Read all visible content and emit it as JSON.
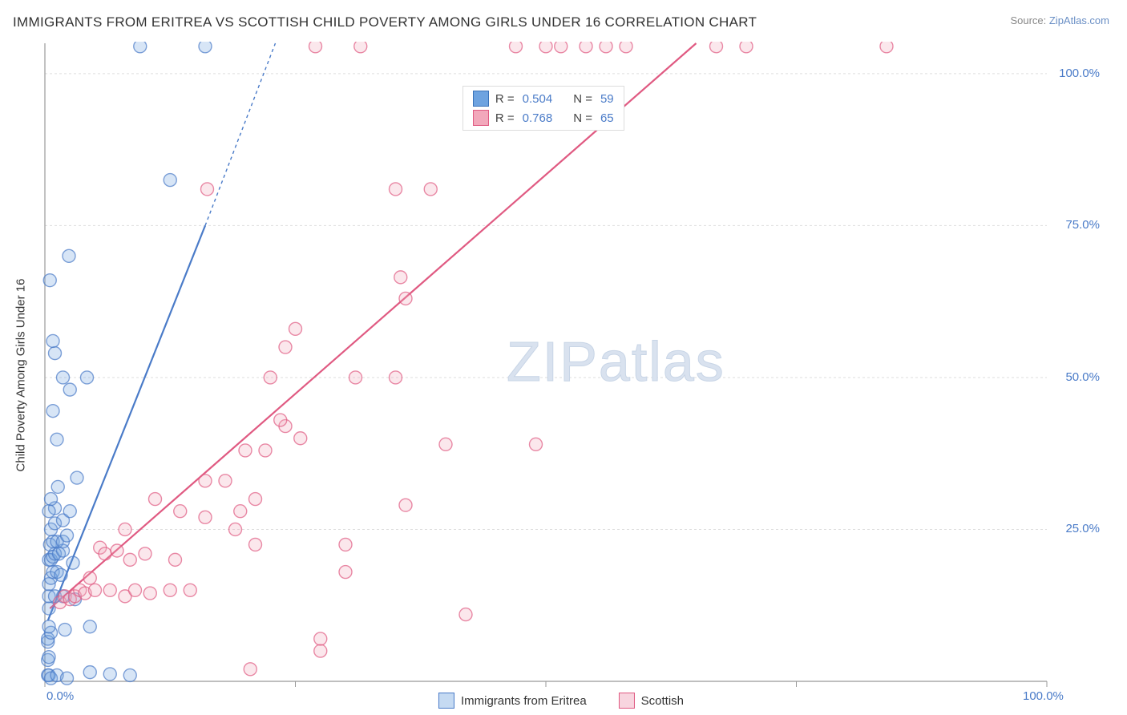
{
  "title": "IMMIGRANTS FROM ERITREA VS SCOTTISH CHILD POVERTY AMONG GIRLS UNDER 16 CORRELATION CHART",
  "source_prefix": "Source: ",
  "source_link_text": "ZipAtlas.com",
  "ylabel": "Child Poverty Among Girls Under 16",
  "watermark_zip": "ZIP",
  "watermark_atlas": "atlas",
  "legend_top": {
    "rows": [
      {
        "r_label": "R =",
        "r_val": "0.504",
        "n_label": "N =",
        "n_val": "59",
        "color": "#6ea3e0",
        "border": "#3a72b8"
      },
      {
        "r_label": "R =",
        "r_val": "0.768",
        "n_label": "N =",
        "n_val": "65",
        "color": "#f2a8bb",
        "border": "#e05a82"
      }
    ]
  },
  "legend_bottom": {
    "items": [
      {
        "label": "Immigrants from Eritrea",
        "fill": "#c5daf2",
        "border": "#4a7bc8"
      },
      {
        "label": "Scottish",
        "fill": "#f8d5df",
        "border": "#e05a82"
      }
    ]
  },
  "chart": {
    "type": "scatter",
    "xlim": [
      0,
      100
    ],
    "ylim": [
      0,
      105
    ],
    "xtick_labels": [
      {
        "v": 0,
        "label": "0.0%"
      },
      {
        "v": 100,
        "label": "100.0%"
      }
    ],
    "ytick_labels": [
      {
        "v": 25,
        "label": "25.0%"
      },
      {
        "v": 50,
        "label": "50.0%"
      },
      {
        "v": 75,
        "label": "75.0%"
      },
      {
        "v": 100,
        "label": "100.0%"
      }
    ],
    "x_minor_ticks": [
      25,
      50,
      75
    ],
    "y_gridlines": [
      25,
      50,
      75,
      100
    ],
    "y_minor_grid": [
      12.5,
      37.5,
      62.5,
      87.5
    ],
    "background_color": "#ffffff",
    "grid_color": "#dddddd",
    "axis_color": "#999999",
    "marker_radius": 8,
    "marker_stroke_width": 1.4,
    "marker_fill_opacity": 0.28,
    "series": [
      {
        "name": "Immigrants from Eritrea",
        "color": "#4a7bc8",
        "fill": "#6ea3e0",
        "trend": {
          "x1": 0.3,
          "y1": 10,
          "x2": 16,
          "y2": 75,
          "dash_after_x": 16,
          "dash_x2": 23,
          "dash_y2": 105
        },
        "points": [
          [
            0.3,
            1
          ],
          [
            0.4,
            1
          ],
          [
            0.6,
            0.5
          ],
          [
            1.2,
            1
          ],
          [
            2.2,
            0.5
          ],
          [
            4.5,
            1.5
          ],
          [
            6.5,
            1.2
          ],
          [
            8.5,
            1
          ],
          [
            0.3,
            3.5
          ],
          [
            0.4,
            4
          ],
          [
            0.3,
            6.5
          ],
          [
            0.3,
            7
          ],
          [
            0.6,
            8
          ],
          [
            0.4,
            9
          ],
          [
            2,
            8.5
          ],
          [
            4.5,
            9
          ],
          [
            0.4,
            12
          ],
          [
            0.4,
            14
          ],
          [
            1,
            14
          ],
          [
            1.8,
            14
          ],
          [
            3,
            13.5
          ],
          [
            0.4,
            16
          ],
          [
            0.6,
            17
          ],
          [
            0.8,
            18
          ],
          [
            1.2,
            18
          ],
          [
            1.6,
            17.5
          ],
          [
            2.8,
            19.5
          ],
          [
            0.4,
            20
          ],
          [
            0.6,
            20
          ],
          [
            0.8,
            20.5
          ],
          [
            1,
            21
          ],
          [
            1.4,
            21
          ],
          [
            1.8,
            21.5
          ],
          [
            0.5,
            22.5
          ],
          [
            0.8,
            23
          ],
          [
            1.2,
            23
          ],
          [
            1.8,
            23
          ],
          [
            2.2,
            24
          ],
          [
            0.6,
            25
          ],
          [
            1.0,
            26
          ],
          [
            1.8,
            26.5
          ],
          [
            1.0,
            28.5
          ],
          [
            0.4,
            28
          ],
          [
            2.5,
            28
          ],
          [
            0.6,
            30
          ],
          [
            1.3,
            32
          ],
          [
            3.2,
            33.5
          ],
          [
            1.2,
            39.8
          ],
          [
            0.8,
            44.5
          ],
          [
            2.5,
            48
          ],
          [
            1.8,
            50
          ],
          [
            4.2,
            50
          ],
          [
            1.0,
            54
          ],
          [
            0.8,
            56
          ],
          [
            2.4,
            70
          ],
          [
            0.5,
            66
          ],
          [
            12.5,
            82.5
          ],
          [
            16,
            104.5
          ],
          [
            9.5,
            104.5
          ]
        ]
      },
      {
        "name": "Scottish",
        "color": "#e05a82",
        "fill": "#f2a8bb",
        "trend": {
          "x1": 0.5,
          "y1": 12,
          "x2": 65,
          "y2": 105
        },
        "points": [
          [
            1.5,
            13
          ],
          [
            2,
            14
          ],
          [
            2.5,
            13.5
          ],
          [
            3,
            14
          ],
          [
            3.5,
            15
          ],
          [
            4,
            14.5
          ],
          [
            4.5,
            17
          ],
          [
            5,
            15
          ],
          [
            5.5,
            22
          ],
          [
            6,
            21
          ],
          [
            6.5,
            15
          ],
          [
            7.2,
            21.5
          ],
          [
            8,
            14
          ],
          [
            8.5,
            20
          ],
          [
            9,
            15
          ],
          [
            10,
            21
          ],
          [
            10.5,
            14.5
          ],
          [
            12.5,
            15
          ],
          [
            13,
            20
          ],
          [
            14.5,
            15
          ],
          [
            8,
            25
          ],
          [
            11,
            30
          ],
          [
            13.5,
            28
          ],
          [
            16,
            27
          ],
          [
            19,
            25
          ],
          [
            19.5,
            28
          ],
          [
            16,
            33
          ],
          [
            21,
            30
          ],
          [
            18,
            33
          ],
          [
            21,
            22.5
          ],
          [
            20,
            38
          ],
          [
            22,
            38
          ],
          [
            24,
            42
          ],
          [
            25.5,
            40
          ],
          [
            23.5,
            43
          ],
          [
            36,
            29
          ],
          [
            40,
            39
          ],
          [
            22.5,
            50
          ],
          [
            24,
            55
          ],
          [
            25,
            58
          ],
          [
            31,
            50
          ],
          [
            35,
            50
          ],
          [
            36,
            63
          ],
          [
            35.5,
            66.5
          ],
          [
            35,
            81
          ],
          [
            38.5,
            81
          ],
          [
            42,
            11
          ],
          [
            30,
            22.5
          ],
          [
            27.5,
            5
          ],
          [
            27.5,
            7
          ],
          [
            30,
            18
          ],
          [
            20.5,
            2
          ],
          [
            16.2,
            81
          ],
          [
            47,
            104.5
          ],
          [
            50,
            104.5
          ],
          [
            51.5,
            104.5
          ],
          [
            54,
            104.5
          ],
          [
            56,
            104.5
          ],
          [
            58,
            104.5
          ],
          [
            67,
            104.5
          ],
          [
            70,
            104.5
          ],
          [
            84,
            104.5
          ],
          [
            27,
            104.5
          ],
          [
            31.5,
            104.5
          ],
          [
            49,
            39
          ]
        ]
      }
    ]
  }
}
